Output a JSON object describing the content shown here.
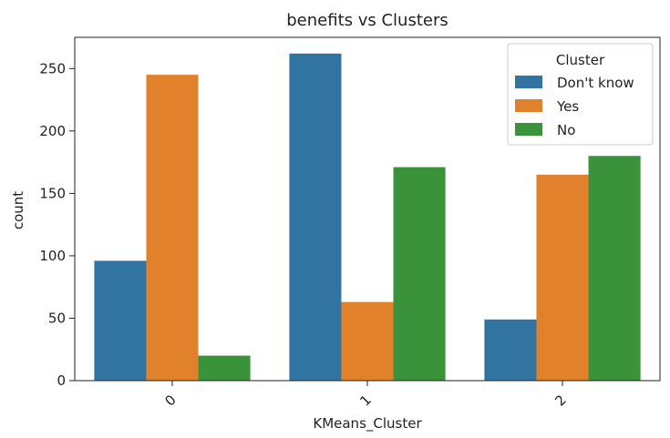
{
  "chart_data": {
    "type": "bar",
    "title": "benefits vs Clusters",
    "xlabel": "KMeans_Cluster",
    "ylabel": "count",
    "categories": [
      "0",
      "1",
      "2"
    ],
    "series": [
      {
        "name": "Don't know",
        "color": "#3274a1",
        "values": [
          96,
          262,
          49
        ]
      },
      {
        "name": "Yes",
        "color": "#e1812c",
        "values": [
          245,
          63,
          165
        ]
      },
      {
        "name": "No",
        "color": "#3a923a",
        "values": [
          20,
          171,
          180
        ]
      }
    ],
    "ylim": [
      0,
      275
    ],
    "yticks": [
      0,
      50,
      100,
      150,
      200,
      250
    ],
    "legend": {
      "title": "Cluster",
      "placement": "top-right"
    },
    "grid": false
  }
}
